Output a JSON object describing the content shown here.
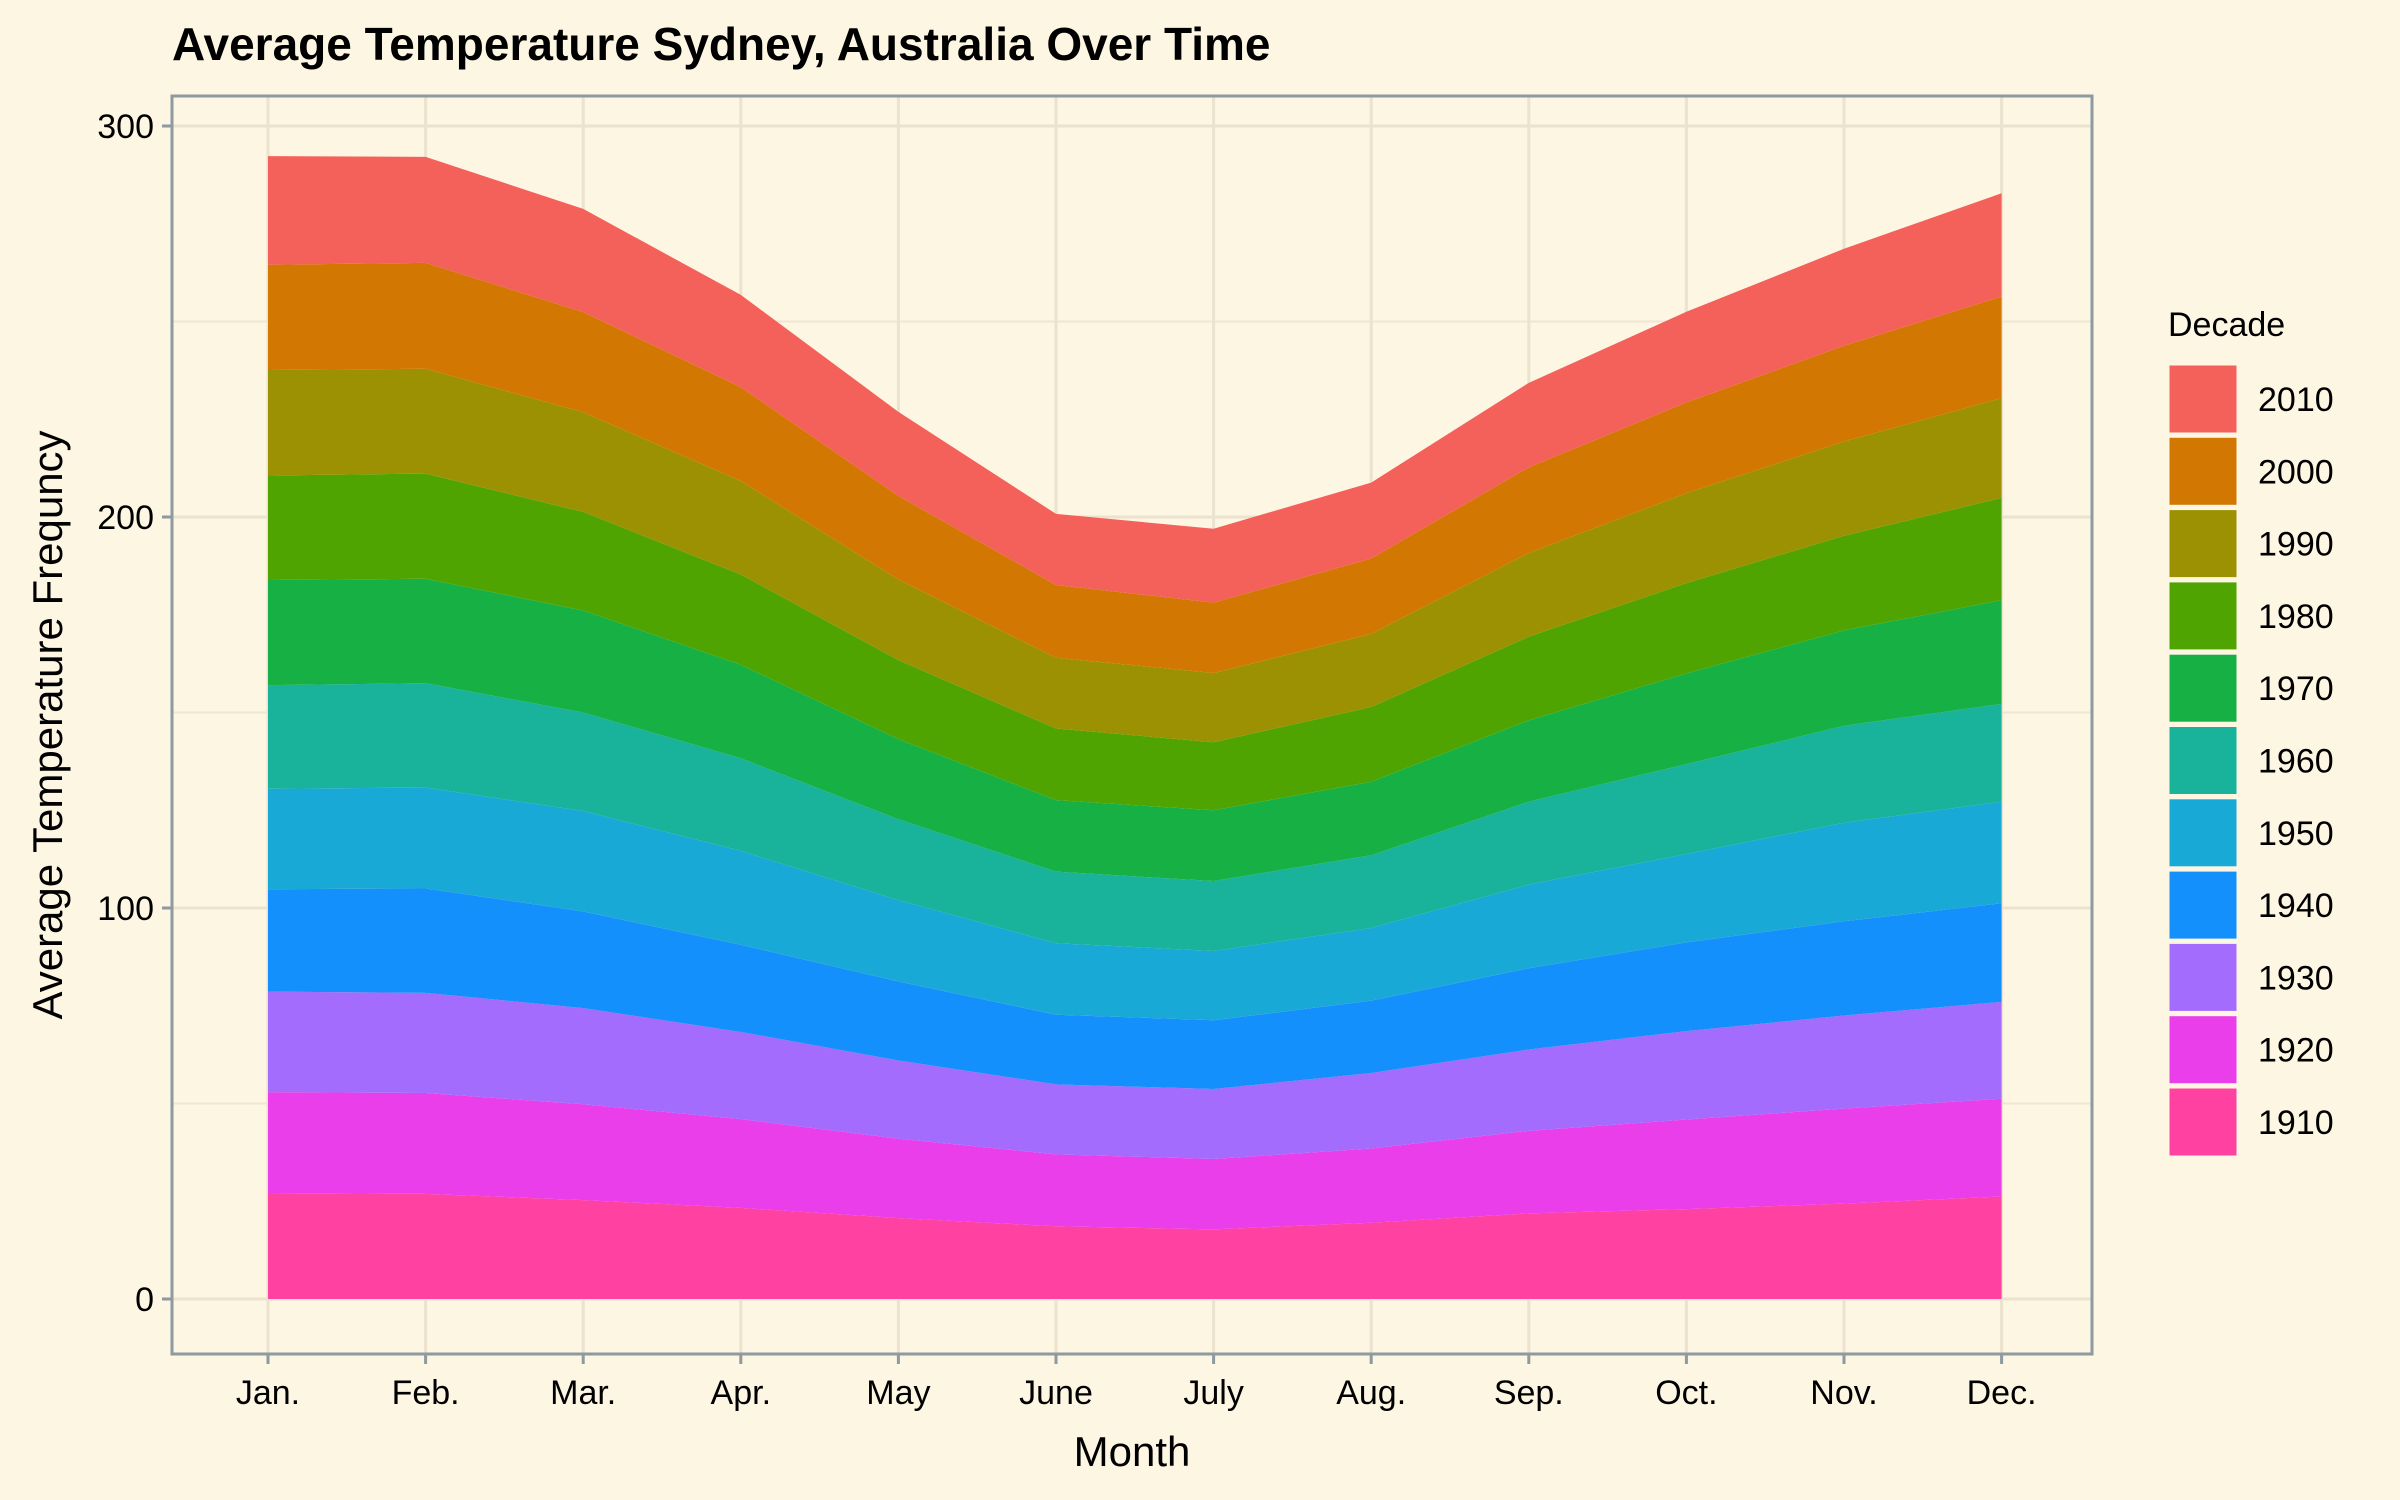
{
  "chart_data": {
    "type": "area",
    "stacked": true,
    "title": "Average Temperature Sydney, Australia Over Time",
    "xlabel": "Month",
    "ylabel": "Average Temperature Frequncy",
    "categories": [
      "Jan.",
      "Feb.",
      "Mar.",
      "Apr.",
      "May",
      "June",
      "July",
      "Aug.",
      "Sep.",
      "Oct.",
      "Nov.",
      "Dec."
    ],
    "ylim": [
      -14,
      300
    ],
    "yticks": [
      0,
      100,
      200,
      300
    ],
    "grid": true,
    "legend": {
      "title": "Decade",
      "placement": "right"
    },
    "series": [
      {
        "name": "1910",
        "color": "#ff41a1",
        "values": [
          27.1,
          26.9,
          25.3,
          23.3,
          20.7,
          18.6,
          17.8,
          19.5,
          21.9,
          23.0,
          24.4,
          26.2
        ]
      },
      {
        "name": "1920",
        "color": "#e93ee9",
        "values": [
          25.8,
          25.8,
          24.5,
          22.7,
          20.3,
          18.4,
          18.0,
          19.0,
          21.1,
          22.9,
          24.3,
          25.0
        ]
      },
      {
        "name": "1930",
        "color": "#a46cfd",
        "values": [
          25.7,
          25.6,
          24.6,
          22.3,
          20.0,
          17.9,
          17.9,
          19.3,
          20.8,
          22.6,
          23.8,
          24.8
        ]
      },
      {
        "name": "1940",
        "color": "#1490fc",
        "values": [
          26.2,
          26.7,
          24.7,
          22.3,
          20.2,
          17.8,
          17.6,
          18.5,
          20.8,
          22.7,
          24.1,
          25.2
        ]
      },
      {
        "name": "1950",
        "color": "#18a9d7",
        "values": [
          25.7,
          25.8,
          25.7,
          24.0,
          20.8,
          18.3,
          17.7,
          18.6,
          21.4,
          22.6,
          25.2,
          26.0
        ]
      },
      {
        "name": "1960",
        "color": "#18b39a",
        "values": [
          26.5,
          26.7,
          25.2,
          23.7,
          20.7,
          18.3,
          17.9,
          18.6,
          21.2,
          23.0,
          24.8,
          25.0
        ]
      },
      {
        "name": "1970",
        "color": "#17b045",
        "values": [
          26.9,
          26.7,
          26.1,
          23.9,
          20.5,
          18.3,
          18.1,
          18.8,
          20.8,
          23.2,
          24.4,
          26.5
        ]
      },
      {
        "name": "1980",
        "color": "#4fa402",
        "values": [
          26.7,
          26.9,
          25.2,
          23.1,
          20.2,
          18.3,
          17.4,
          19.1,
          21.4,
          23.1,
          24.2,
          26.2
        ]
      },
      {
        "name": "1990",
        "color": "#9b9102",
        "values": [
          27.0,
          26.8,
          25.5,
          23.9,
          20.6,
          18.1,
          17.7,
          18.7,
          21.4,
          23.0,
          24.1,
          25.5
        ]
      },
      {
        "name": "2000",
        "color": "#d27802",
        "values": [
          26.9,
          27.1,
          25.6,
          24.0,
          21.4,
          18.6,
          18.0,
          19.3,
          21.9,
          23.2,
          24.5,
          26.0
        ]
      },
      {
        "name": "2010",
        "color": "#f4605a",
        "values": [
          27.8,
          27.1,
          26.4,
          23.6,
          21.5,
          18.2,
          18.9,
          19.4,
          21.6,
          23.2,
          24.8,
          26.4
        ]
      }
    ]
  }
}
